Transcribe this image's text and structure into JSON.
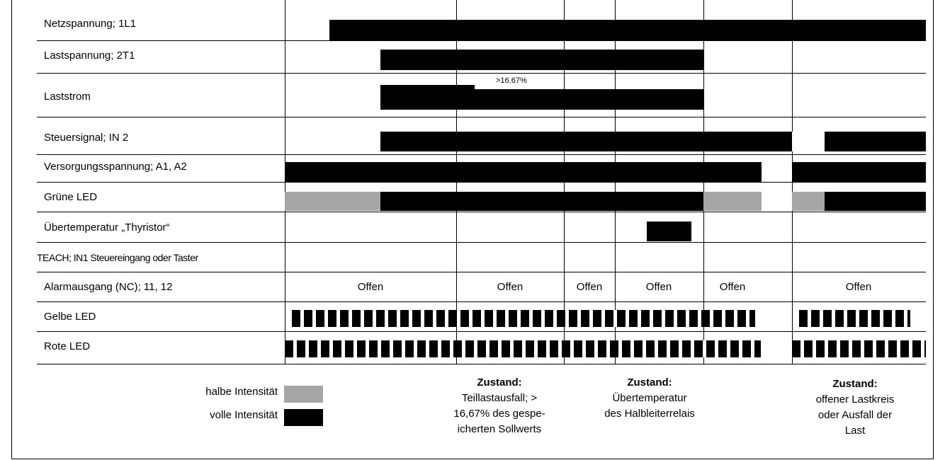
{
  "rows": [
    {
      "label": "Netzspannung; 1L1"
    },
    {
      "label": "Lastspannung; 2T1"
    },
    {
      "label": "Laststrom"
    },
    {
      "label": "Steuersignal; IN 2"
    },
    {
      "label": "Versorgungsspannung; A1, A2"
    },
    {
      "label": "Grüne LED"
    },
    {
      "label": "Übertemperatur „Thyristor“"
    },
    {
      "label": "TEACH; IN1 Steuereingang oder Taster"
    },
    {
      "label": "Alarmausgang (NC); 11, 12"
    },
    {
      "label": "Gelbe LED"
    },
    {
      "label": "Rote LED"
    }
  ],
  "annotation": ">16.67%",
  "alarm_states": [
    "Offen",
    "Offen",
    "Offen",
    "Offen",
    "Offen",
    "Offen"
  ],
  "legend": {
    "half": "halbe Intensität",
    "full": "volle Intensität"
  },
  "states": [
    {
      "head": "Zustand:",
      "lines": [
        "Teillastausfall; >",
        "16,67% des gespe-",
        "icherten Sollwerts"
      ]
    },
    {
      "head": "Zustand:",
      "lines": [
        "Übertemperatur",
        "des Halbleiterrelais"
      ]
    },
    {
      "head": "Zustand:",
      "lines": [
        "offener Lastkreis",
        "oder Ausfall der",
        "Last"
      ]
    }
  ],
  "colors": {
    "full": "#000000",
    "half": "#a6a6a6"
  }
}
